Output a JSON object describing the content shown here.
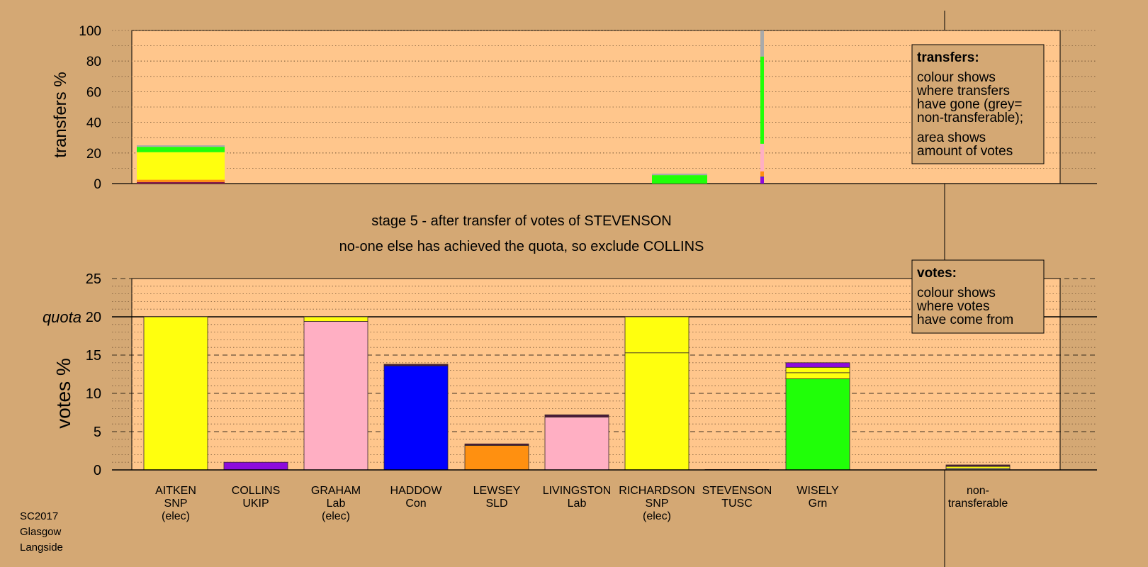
{
  "colors": {
    "background": "#d4a874",
    "plot_area": "#ffc68c",
    "box_fill": "#d4a874",
    "SNP": "#ffff0e",
    "Lab": "#ffafc3",
    "Con": "#0000ff",
    "SLD": "#ff9010",
    "UKIP": "#8d0bdd",
    "Grn": "#20ff08",
    "TUSC": "#8b1a4a",
    "nontransferable": "#aaaaaa",
    "dark": "#4a1a3a"
  },
  "heading": {
    "line1": "stage 5 - after transfer of votes of STEVENSON",
    "line2": "no-one else has achieved the quota, so exclude COLLINS"
  },
  "corner_label": [
    "SC2017",
    "Glasgow",
    "Langside"
  ],
  "transfers_box": {
    "title": "transfers:",
    "lines1": [
      "colour shows",
      "where transfers",
      "have gone (grey=",
      "non-transferable);"
    ],
    "lines2": [
      "area shows",
      "amount of votes"
    ]
  },
  "votes_box": {
    "title": "votes:",
    "lines": [
      "colour shows",
      "where votes",
      "have come from"
    ]
  },
  "chart_data": [
    {
      "type": "bar",
      "title": "transfers",
      "ylabel": "transfers %",
      "ylim": [
        0,
        100
      ],
      "yticks": [
        0,
        20,
        40,
        60,
        80,
        100
      ],
      "grid": true,
      "legend": "top-right",
      "bars": [
        {
          "category": "AITKEN",
          "width_fraction": 1.0,
          "segments": [
            {
              "party": "TUSC",
              "from": 0,
              "to": 1
            },
            {
              "party": "SLD",
              "from": 1,
              "to": 2.5
            },
            {
              "party": "SNP",
              "from": 2.5,
              "to": 20.5
            },
            {
              "party": "Grn",
              "from": 20.5,
              "to": 24
            },
            {
              "party": "nontransferable",
              "from": 24,
              "to": 25
            }
          ]
        },
        {
          "category": "RICHARDSON",
          "width_fraction": 1.0,
          "segments": [
            {
              "party": "Grn",
              "from": 0,
              "to": 5.5
            },
            {
              "party": "nontransferable",
              "from": 5.5,
              "to": 6.5
            }
          ]
        },
        {
          "category": "STEVENSON",
          "width_fraction": 0.04,
          "segments": [
            {
              "party": "UKIP",
              "from": 0,
              "to": 4
            },
            {
              "party": "Con",
              "from": 4,
              "to": 4.5
            },
            {
              "party": "SLD",
              "from": 4.5,
              "to": 8
            },
            {
              "party": "Lab",
              "from": 8,
              "to": 26
            },
            {
              "party": "Grn",
              "from": 26,
              "to": 83
            },
            {
              "party": "nontransferable",
              "from": 83,
              "to": 100
            }
          ]
        }
      ]
    },
    {
      "type": "bar",
      "title": "votes",
      "ylabel": "votes %",
      "ylim": [
        0,
        25
      ],
      "yticks": [
        0,
        5,
        10,
        15,
        20,
        25
      ],
      "quota": 20,
      "quota_label": "quota",
      "grid": true,
      "legend": "top-right",
      "categories": [
        "AITKEN",
        "COLLINS",
        "GRAHAM",
        "HADDOW",
        "LEWSEY",
        "LIVINGSTON",
        "RICHARDSON",
        "STEVENSON",
        "WISELY",
        "",
        "non-transferable"
      ],
      "category_labels": [
        [
          "AITKEN",
          "SNP",
          "(elec)"
        ],
        [
          "COLLINS",
          "UKIP"
        ],
        [
          "GRAHAM",
          "Lab",
          "(elec)"
        ],
        [
          "HADDOW",
          "Con"
        ],
        [
          "LEWSEY",
          "SLD"
        ],
        [
          "LIVINGSTON",
          "Lab"
        ],
        [
          "RICHARDSON",
          "SNP",
          "(elec)"
        ],
        [
          "STEVENSON",
          "TUSC"
        ],
        [
          "WISELY",
          "Grn"
        ],
        [],
        [
          "non-",
          "transferable"
        ]
      ],
      "bars": [
        {
          "category": "AITKEN",
          "segments": [
            {
              "party": "SNP",
              "from": 0,
              "to": 20
            }
          ]
        },
        {
          "category": "COLLINS",
          "segments": [
            {
              "party": "UKIP",
              "from": 0,
              "to": 1.0
            }
          ]
        },
        {
          "category": "GRAHAM",
          "segments": [
            {
              "party": "Lab",
              "from": 0,
              "to": 19.4
            },
            {
              "party": "SNP",
              "from": 19.4,
              "to": 20
            }
          ]
        },
        {
          "category": "HADDOW",
          "segments": [
            {
              "party": "Con",
              "from": 0,
              "to": 13.6
            },
            {
              "party": "dark",
              "from": 13.6,
              "to": 13.8
            }
          ]
        },
        {
          "category": "LEWSEY",
          "segments": [
            {
              "party": "SLD",
              "from": 0,
              "to": 3.2
            },
            {
              "party": "dark",
              "from": 3.2,
              "to": 3.4
            }
          ]
        },
        {
          "category": "LIVINGSTON",
          "segments": [
            {
              "party": "Lab",
              "from": 0,
              "to": 6.9
            },
            {
              "party": "dark",
              "from": 6.9,
              "to": 7.2
            }
          ]
        },
        {
          "category": "RICHARDSON",
          "segments": [
            {
              "party": "SNP",
              "from": 0,
              "to": 15.3
            },
            {
              "party": "SNP",
              "from": 15.3,
              "to": 20
            }
          ]
        },
        {
          "category": "STEVENSON",
          "segments": [
            {
              "party": "TUSC",
              "from": 0,
              "to": 0.05
            }
          ]
        },
        {
          "category": "WISELY",
          "segments": [
            {
              "party": "Grn",
              "from": 0,
              "to": 11.9
            },
            {
              "party": "SNP",
              "from": 11.9,
              "to": 12.7
            },
            {
              "party": "SNP",
              "from": 12.7,
              "to": 13.4
            },
            {
              "party": "UKIP",
              "from": 13.4,
              "to": 14.0
            }
          ]
        },
        {
          "category": "non-transferable",
          "segments": [
            {
              "party": "nontransferable",
              "from": 0,
              "to": 0.2
            },
            {
              "party": "SNP",
              "from": 0.2,
              "to": 0.45
            },
            {
              "party": "dark",
              "from": 0.45,
              "to": 0.65
            }
          ]
        }
      ]
    }
  ]
}
